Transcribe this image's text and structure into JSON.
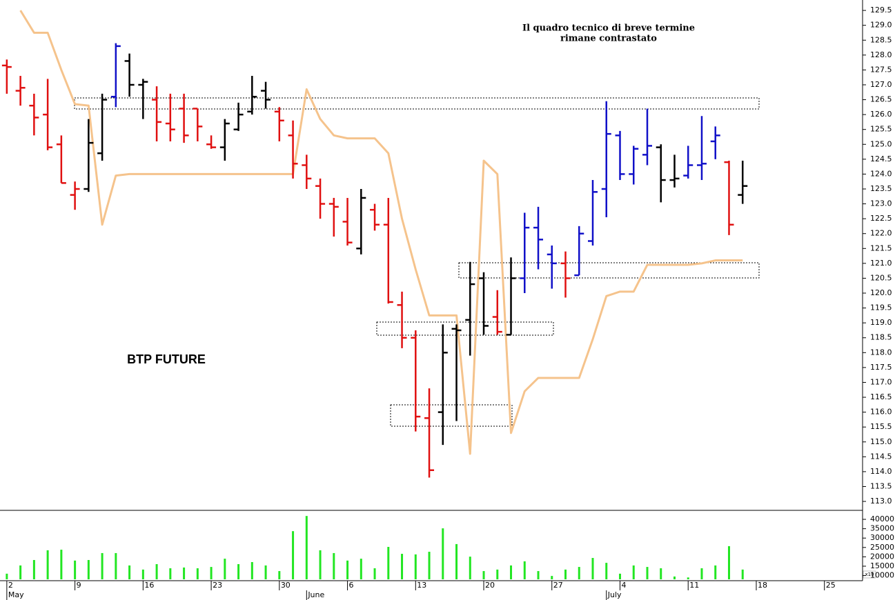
{
  "chart_data": [
    {
      "type": "ohlc",
      "annotation": [
        "Il quadro tecnico di breve termine",
        "rimane contrastato"
      ],
      "label": "BTP FUTURE",
      "x": [
        0,
        1,
        2,
        3,
        4,
        5,
        6,
        7,
        8,
        9,
        10,
        11,
        12,
        13,
        14,
        15,
        16,
        17,
        18,
        19,
        20,
        21,
        22,
        23,
        24,
        25,
        26,
        27,
        28,
        29,
        30,
        31,
        32,
        33,
        34,
        35,
        36,
        37,
        38,
        39,
        40,
        41,
        42,
        43,
        44,
        45,
        46,
        47,
        48,
        49,
        50,
        51,
        52,
        53,
        54
      ],
      "open": [
        127.65,
        126.8,
        126.3,
        126.0,
        125.0,
        123.3,
        123.5,
        124.7,
        126.6,
        127.8,
        127.0,
        126.5,
        125.7,
        126.2,
        126.2,
        125.0,
        124.9,
        125.5,
        126.1,
        126.8,
        126.1,
        125.3,
        124.3,
        123.6,
        123.0,
        122.4,
        121.5,
        122.8,
        122.3,
        119.6,
        118.5,
        115.8,
        116.0,
        118.8,
        119.1,
        120.5,
        119.2,
        118.6,
        120.5,
        122.2,
        121.3,
        121.0,
        120.6,
        121.75,
        123.5,
        125.3,
        124.0,
        124.65,
        124.9,
        123.8,
        123.95,
        124.3,
        125.1,
        124.4,
        123.3
      ],
      "high": [
        127.85,
        127.3,
        126.7,
        127.2,
        125.3,
        123.75,
        125.85,
        126.7,
        128.4,
        128.05,
        127.2,
        126.95,
        126.7,
        126.7,
        126.2,
        125.3,
        125.85,
        126.4,
        127.3,
        127.1,
        126.25,
        125.8,
        124.65,
        123.85,
        123.2,
        123.2,
        123.5,
        123.0,
        123.2,
        120.05,
        118.75,
        116.8,
        118.95,
        118.95,
        121.05,
        120.7,
        120.1,
        121.2,
        122.7,
        122.9,
        121.6,
        121.4,
        122.25,
        123.8,
        126.45,
        125.45,
        124.95,
        126.2,
        125.0,
        124.65,
        124.95,
        125.95,
        125.6,
        124.45,
        124.45
      ],
      "low": [
        126.7,
        126.3,
        125.3,
        124.8,
        123.7,
        122.8,
        123.4,
        124.45,
        126.25,
        126.6,
        125.85,
        125.1,
        125.1,
        125.05,
        125.1,
        124.85,
        124.45,
        125.45,
        126.0,
        126.2,
        125.1,
        123.85,
        123.5,
        122.5,
        121.9,
        121.6,
        121.3,
        122.1,
        119.65,
        118.15,
        115.35,
        113.8,
        114.9,
        115.7,
        117.9,
        118.6,
        118.6,
        118.6,
        120.0,
        120.8,
        120.15,
        119.85,
        120.6,
        121.6,
        122.55,
        123.8,
        123.65,
        124.3,
        123.05,
        123.55,
        123.85,
        123.8,
        124.5,
        121.95,
        123.0
      ],
      "close": [
        127.6,
        126.9,
        125.9,
        124.9,
        123.7,
        123.5,
        125.05,
        126.5,
        128.3,
        127.0,
        127.1,
        125.75,
        125.5,
        125.3,
        125.6,
        124.9,
        125.7,
        126.0,
        126.6,
        126.5,
        125.8,
        124.35,
        123.85,
        123.0,
        122.9,
        121.7,
        123.2,
        122.3,
        119.7,
        118.5,
        115.85,
        114.05,
        118.0,
        118.75,
        120.3,
        118.9,
        118.7,
        120.5,
        122.2,
        121.8,
        121.0,
        120.5,
        122.0,
        123.4,
        125.35,
        124.0,
        124.85,
        124.95,
        123.8,
        123.85,
        124.3,
        124.35,
        125.3,
        122.3,
        123.6
      ],
      "colors": [
        "#e01010",
        "#e01010",
        "#e01010",
        "#e01010",
        "#e01010",
        "#e01010",
        "#000000",
        "#000000",
        "#1010c8",
        "#000000",
        "#000000",
        "#e01010",
        "#e01010",
        "#e01010",
        "#e01010",
        "#e01010",
        "#000000",
        "#000000",
        "#000000",
        "#000000",
        "#e01010",
        "#e01010",
        "#e01010",
        "#e01010",
        "#e01010",
        "#e01010",
        "#000000",
        "#e01010",
        "#e01010",
        "#e01010",
        "#e01010",
        "#e01010",
        "#000000",
        "#000000",
        "#000000",
        "#000000",
        "#e01010",
        "#000000",
        "#1010c8",
        "#1010c8",
        "#1010c8",
        "#e01010",
        "#1010c8",
        "#1010c8",
        "#1010c8",
        "#1010c8",
        "#1010c8",
        "#1010c8",
        "#000000",
        "#000000",
        "#1010c8",
        "#1010c8",
        "#1010c8",
        "#e01010",
        "#000000"
      ],
      "overlay": {
        "color": "#f5c38c",
        "values": [
          null,
          129.5,
          128.75,
          128.75,
          127.5,
          126.35,
          126.3,
          122.3,
          123.95,
          124.0,
          124.0,
          124.0,
          124.0,
          124.0,
          124.0,
          124.0,
          124.0,
          124.0,
          124.0,
          124.0,
          124.0,
          124.0,
          126.85,
          125.85,
          125.3,
          125.2,
          125.2,
          125.2,
          124.7,
          122.5,
          120.8,
          119.25,
          119.25,
          119.25,
          114.6,
          124.45,
          124.0,
          115.3,
          116.7,
          117.15,
          117.15,
          117.15,
          117.15,
          118.45,
          119.9,
          120.05,
          120.05,
          120.95,
          120.95,
          120.95,
          120.95,
          121.0,
          121.1,
          121.1,
          121.1
        ]
      },
      "xlim": [
        -0.5,
        62.8
      ],
      "xticks": [
        {
          "value": 0,
          "label": "2"
        },
        {
          "value": 5,
          "label": "9"
        },
        {
          "value": 10,
          "label": "16"
        },
        {
          "value": 15,
          "label": "23"
        },
        {
          "value": 20,
          "label": "30"
        },
        {
          "value": 25,
          "label": "6"
        },
        {
          "value": 30,
          "label": "13"
        },
        {
          "value": 35,
          "label": "20"
        },
        {
          "value": 40,
          "label": "27"
        },
        {
          "value": 45,
          "label": "4"
        },
        {
          "value": 50,
          "label": "11"
        },
        {
          "value": 55,
          "label": "18"
        },
        {
          "value": 60,
          "label": "25"
        }
      ],
      "months": [
        {
          "value": 0,
          "label": "May"
        },
        {
          "value": 22,
          "label": "June"
        },
        {
          "value": 44,
          "label": "July"
        }
      ],
      "ylim": [
        112.7,
        129.85
      ],
      "yticks": [
        {
          "value": 113,
          "label": "113.0"
        },
        113.5,
        {
          "value": 114,
          "label": "114.0"
        },
        114.5,
        {
          "value": 115,
          "label": "115.0"
        },
        115.5,
        {
          "value": 116,
          "label": "116.0"
        },
        116.5,
        {
          "value": 117,
          "label": "117.0"
        },
        117.5,
        {
          "value": 118,
          "label": "118.0"
        },
        118.5,
        {
          "value": 119,
          "label": "119.0"
        },
        119.5,
        {
          "value": 120,
          "label": "120.0"
        },
        120.5,
        {
          "value": 121,
          "label": "121.0"
        },
        121.5,
        {
          "value": 122,
          "label": "122.0"
        },
        122.5,
        {
          "value": 123,
          "label": "123.0"
        },
        123.5,
        {
          "value": 124,
          "label": "124.0"
        },
        124.5,
        {
          "value": 125,
          "label": "125.0"
        },
        125.5,
        {
          "value": 126,
          "label": "126.0"
        },
        126.5,
        {
          "value": 127,
          "label": "127.0"
        },
        127.5,
        {
          "value": 128,
          "label": "128.0"
        },
        128.5,
        {
          "value": 129,
          "label": "129.0"
        },
        129.5
      ]
    },
    {
      "type": "bar",
      "x": [
        0,
        1,
        2,
        3,
        4,
        5,
        6,
        7,
        8,
        9,
        10,
        11,
        12,
        13,
        14,
        15,
        16,
        17,
        18,
        19,
        20,
        21,
        22,
        23,
        24,
        25,
        26,
        27,
        28,
        29,
        30,
        31,
        32,
        33,
        34,
        35,
        36,
        37,
        38,
        39,
        40,
        41,
        42,
        43,
        44,
        45,
        46,
        47,
        48,
        49,
        50,
        51,
        52,
        53,
        54
      ],
      "values": [
        11000,
        15400,
        18300,
        23500,
        23800,
        18000,
        18300,
        22000,
        22000,
        15400,
        13200,
        16100,
        13900,
        14300,
        13900,
        14600,
        19000,
        16100,
        17200,
        15400,
        12400,
        33700,
        41800,
        23500,
        22000,
        18000,
        19000,
        13900,
        25300,
        21600,
        21300,
        22700,
        35200,
        26800,
        20100,
        12400,
        13200,
        15400,
        17600,
        12400,
        9800,
        13200,
        14600,
        19400,
        16800,
        11000,
        15400,
        14600,
        13900,
        9500,
        9000,
        13900,
        15400,
        25700,
        13200
      ],
      "color": "#22e622",
      "multiplier_label": "x10",
      "ylim": [
        8000,
        44800
      ],
      "yticks": [
        10000,
        15000,
        20000,
        25000,
        30000,
        35000,
        40000
      ]
    }
  ]
}
